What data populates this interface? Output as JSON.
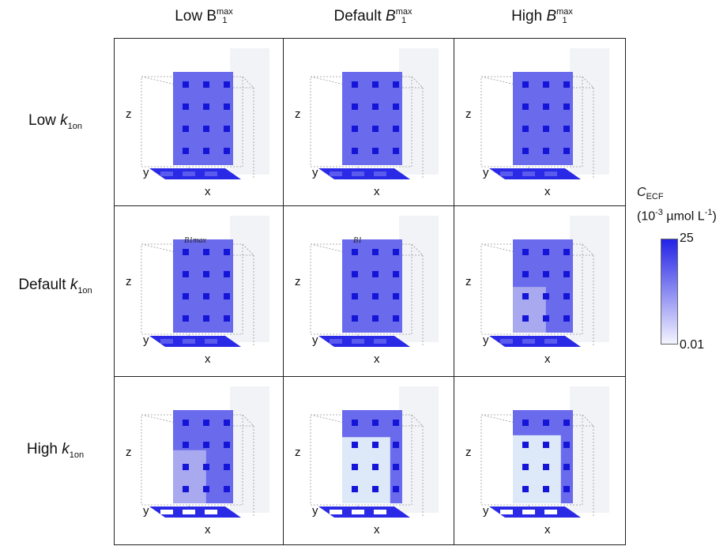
{
  "columns": [
    {
      "prefix": "Low ",
      "symbol": "B",
      "sub": "1",
      "sup": "max"
    },
    {
      "prefix": "Default ",
      "symbol": "B",
      "sub": "1",
      "sup": "max"
    },
    {
      "prefix": "High ",
      "symbol": "B",
      "sub": "1",
      "sup": "max"
    }
  ],
  "rows": [
    {
      "prefix": "Low ",
      "symbol": "k",
      "sub": "1on"
    },
    {
      "prefix": "Default ",
      "symbol": "k",
      "sub": "1on"
    },
    {
      "prefix": "High ",
      "symbol": "k",
      "sub": "1on"
    }
  ],
  "axes": {
    "x": "x",
    "y": "y",
    "z": "z"
  },
  "cell_overlays": {
    "r1c0": "B1max",
    "r1c1": "B1"
  },
  "legend": {
    "symbol": "C",
    "symbol_sub": "ECF",
    "units_open": "(10",
    "units_exp": "-3",
    "units_mid": " µmol L",
    "units_exp2": "-1",
    "units_close": ")",
    "max": "25",
    "min": "0.01",
    "color_max": "#2323e6",
    "color_min": "#f4f4ff"
  },
  "colors": {
    "high": "#3a3ae8",
    "mid": "#6a6aec",
    "low": "#a9a9f0",
    "pale": "#dde8f8",
    "frame": "#999999"
  },
  "cells": [
    [
      {
        "depletion": 0.0
      },
      {
        "depletion": 0.0
      },
      {
        "depletion": 0.0
      }
    ],
    [
      {
        "depletion": 0.0
      },
      {
        "depletion": 0.0
      },
      {
        "depletion": 0.35
      }
    ],
    [
      {
        "depletion": 0.55
      },
      {
        "depletion": 0.9
      },
      {
        "depletion": 0.95
      }
    ]
  ]
}
